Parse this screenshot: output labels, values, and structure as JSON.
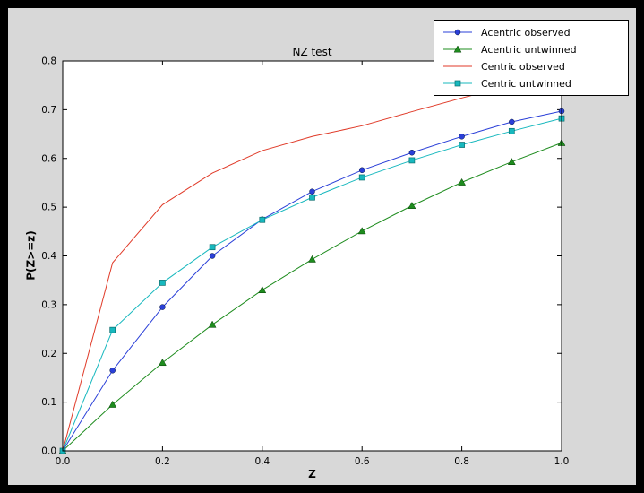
{
  "window": {
    "outer_background": "#000000",
    "figure_background": "#d8d8d8",
    "plot_background": "#ffffff",
    "axis_color": "#000000"
  },
  "chart_data": {
    "type": "line",
    "title": "NZ test",
    "xlabel": "Z",
    "ylabel": "P(Z>=z)",
    "xlim": [
      0,
      1.0
    ],
    "ylim": [
      0,
      0.8
    ],
    "grid": false,
    "legend_position": "upper-right-outside",
    "xtick_values": [
      0,
      0.2,
      0.4,
      0.6,
      0.8,
      1.0
    ],
    "xtick_labels": [
      "0.0",
      "0.2",
      "0.4",
      "0.6",
      "0.8",
      "1.0"
    ],
    "ytick_values": [
      0,
      0.1,
      0.2,
      0.3,
      0.4,
      0.5,
      0.6,
      0.7,
      0.8
    ],
    "ytick_labels": [
      "0.0",
      "0.1",
      "0.2",
      "0.3",
      "0.4",
      "0.5",
      "0.6",
      "0.7",
      "0.8"
    ],
    "x": [
      0,
      0.1,
      0.2,
      0.3,
      0.4,
      0.5,
      0.6,
      0.7,
      0.8,
      0.9,
      1.0
    ],
    "series": [
      {
        "name": "Acentric observed",
        "color": "#2a3fd8",
        "marker": "circle",
        "values": [
          0,
          0.165,
          0.295,
          0.4,
          0.475,
          0.532,
          0.576,
          0.612,
          0.645,
          0.675,
          0.697
        ]
      },
      {
        "name": "Acentric untwinned",
        "color": "#1e8c1e",
        "marker": "triangle",
        "values": [
          0,
          0.095,
          0.181,
          0.259,
          0.33,
          0.393,
          0.451,
          0.503,
          0.551,
          0.593,
          0.632
        ]
      },
      {
        "name": "Centric observed",
        "color": "#e03a28",
        "marker": "none",
        "values": [
          0,
          0.386,
          0.505,
          0.57,
          0.616,
          0.645,
          0.667,
          0.696,
          0.724,
          0.75,
          0.77
        ]
      },
      {
        "name": "Centric untwinned",
        "color": "#17b8be",
        "marker": "square",
        "values": [
          0,
          0.248,
          0.345,
          0.418,
          0.474,
          0.52,
          0.561,
          0.596,
          0.628,
          0.656,
          0.682
        ]
      }
    ]
  }
}
